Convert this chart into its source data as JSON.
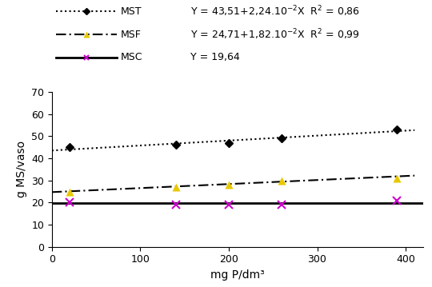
{
  "x_data": [
    20,
    140,
    200,
    260,
    390
  ],
  "mst_y": [
    45.0,
    46.0,
    47.0,
    49.0,
    53.0
  ],
  "msf_y": [
    25.0,
    27.0,
    28.0,
    30.0,
    31.0
  ],
  "msc_y": [
    20.0,
    19.0,
    19.0,
    19.0,
    21.0
  ],
  "mst_eq_a": 43.51,
  "mst_eq_b": 0.0224,
  "msf_eq_a": 24.71,
  "msf_eq_b": 0.0182,
  "msc_const": 19.64,
  "xlim": [
    0,
    420
  ],
  "ylim": [
    0,
    70
  ],
  "xticks": [
    0,
    100,
    200,
    300,
    400
  ],
  "yticks": [
    0,
    10,
    20,
    30,
    40,
    50,
    60,
    70
  ],
  "xlabel": "mg P/dm³",
  "ylabel": "g MS/vaso",
  "mst_marker_color": "#000000",
  "msf_marker_color": "#e8c800",
  "msc_marker_color": "#cc00cc",
  "legend_mst_label": "MST",
  "legend_msf_label": "MSF",
  "legend_msc_label": "MSC",
  "eq_mst": "Y = 43,51+2,24.10$^{-2}$X  R$^{2}$ = 0,86",
  "eq_msf": "Y = 24,71+1,82.10$^{-2}$X  R$^{2}$ = 0,99",
  "eq_msc": "Y = 19,64",
  "fig_width": 5.4,
  "fig_height": 3.59,
  "dpi": 100
}
